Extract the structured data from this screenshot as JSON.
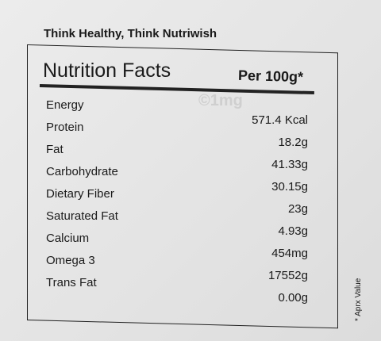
{
  "header": {
    "title": "Think Healthy, Think Nutriwish"
  },
  "table": {
    "title": "Nutrition Facts",
    "basis": "Per 100g*",
    "watermark": "©1mg",
    "rows": [
      [
        "Energy",
        "571.4 Kcal"
      ],
      [
        "Protein",
        "18.2g"
      ],
      [
        "Fat",
        "41.33g"
      ],
      [
        "Carbohydrate",
        "30.15g"
      ],
      [
        "Dietary Fiber",
        "23g"
      ],
      [
        "Saturated Fat",
        "4.93g"
      ],
      [
        "Calcium",
        "454mg"
      ],
      [
        "Omega 3",
        "17552g"
      ],
      [
        "Trans Fat",
        "0.00g"
      ]
    ]
  },
  "footnote": "* Aprx Value"
}
